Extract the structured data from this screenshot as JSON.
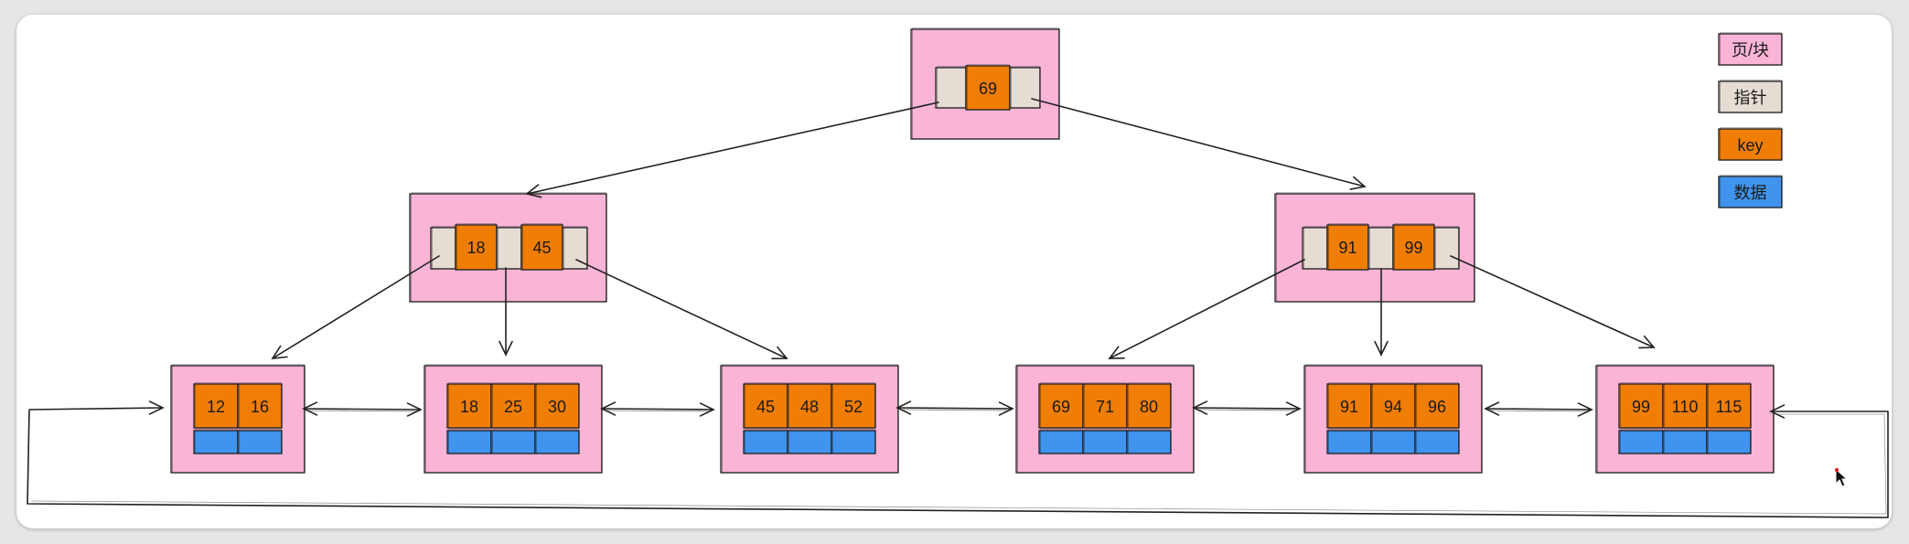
{
  "colors": {
    "page": "#f9b4d6",
    "pointer": "#e5dcd3",
    "key": "#ef7d06",
    "data": "#4094ee",
    "stroke": "#222222"
  },
  "legend": [
    {
      "label": "页/块",
      "swatch": "page"
    },
    {
      "label": "指针",
      "swatch": "pointer"
    },
    {
      "label": "key",
      "swatch": "key"
    },
    {
      "label": "数据",
      "swatch": "data"
    }
  ],
  "tree": {
    "root": {
      "keys": [
        "69"
      ]
    },
    "internal": [
      {
        "keys": [
          "18",
          "45"
        ]
      },
      {
        "keys": [
          "91",
          "99"
        ]
      }
    ],
    "leaves": [
      {
        "keys": [
          "12",
          "16"
        ]
      },
      {
        "keys": [
          "18",
          "25",
          "30"
        ]
      },
      {
        "keys": [
          "45",
          "48",
          "52"
        ]
      },
      {
        "keys": [
          "69",
          "71",
          "80"
        ]
      },
      {
        "keys": [
          "91",
          "94",
          "96"
        ]
      },
      {
        "keys": [
          "99",
          "110",
          "115"
        ]
      }
    ]
  }
}
